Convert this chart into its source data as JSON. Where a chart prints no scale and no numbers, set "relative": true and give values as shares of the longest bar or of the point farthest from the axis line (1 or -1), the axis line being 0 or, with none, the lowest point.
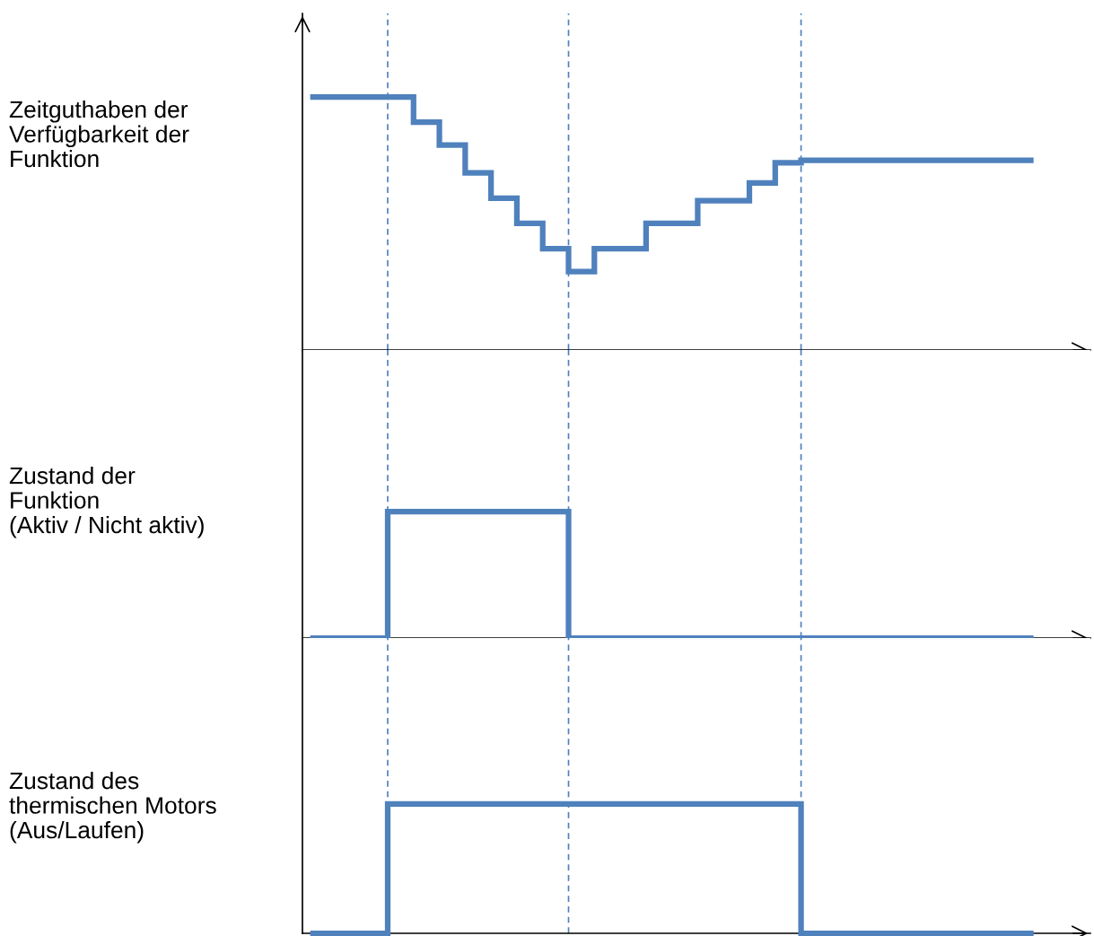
{
  "chart_data": [
    {
      "type": "step",
      "relative": true,
      "ylabel": "Zeitguthaben der\nVerfügbarkeit der\nFunktion",
      "categories": [
        null,
        null,
        null,
        null,
        null,
        null,
        null,
        null,
        null,
        null,
        null,
        null,
        null,
        null,
        null,
        null,
        null,
        null,
        null,
        null,
        null,
        null,
        null,
        null,
        null,
        null,
        null,
        null,
        null
      ],
      "series": [
        {
          "color": "#4f81bd",
          "values": [
            1.0,
            1.0,
            1.0,
            1.0,
            0.9,
            0.81,
            0.7,
            0.6,
            0.5,
            0.4,
            0.31,
            0.4,
            0.4,
            0.5,
            0.5,
            0.59,
            0.59,
            0.66,
            0.74,
            0.75,
            0.75,
            0.75,
            0.75,
            0.75,
            0.75,
            0.75,
            0.75,
            0.75,
            0.75
          ]
        }
      ],
      "grid": "x"
    },
    {
      "type": "step",
      "relative": true,
      "ylabel": "Zustand der\nFunktion\n(Aktiv / Nicht aktiv)",
      "categories": [
        null,
        null,
        null,
        null,
        null,
        null,
        null,
        null,
        null,
        null,
        null,
        null,
        null,
        null,
        null,
        null,
        null,
        null,
        null,
        null,
        null,
        null,
        null,
        null,
        null,
        null,
        null,
        null,
        null
      ],
      "series": [
        {
          "color": "#4f81bd",
          "values": [
            0,
            0,
            0,
            1,
            1,
            1,
            1,
            1,
            1,
            1,
            0,
            0,
            0,
            0,
            0,
            0,
            0,
            0,
            0,
            0,
            0,
            0,
            0,
            0,
            0,
            0,
            0,
            0,
            0
          ]
        }
      ],
      "grid": "x"
    },
    {
      "type": "step",
      "relative": true,
      "ylabel": "Zustand des\nthermischen Motors\n(Aus/Laufen)",
      "categories": [
        null,
        null,
        null,
        null,
        null,
        null,
        null,
        null,
        null,
        null,
        null,
        null,
        null,
        null,
        null,
        null,
        null,
        null,
        null,
        null,
        null,
        null,
        null,
        null,
        null,
        null,
        null,
        null,
        null
      ],
      "series": [
        {
          "color": "#4f81bd",
          "values": [
            0,
            0,
            0,
            1,
            1,
            1,
            1,
            1,
            1,
            1,
            1,
            1,
            1,
            1,
            1,
            1,
            1,
            1,
            1,
            0,
            0,
            0,
            0,
            0,
            0,
            0,
            0,
            0,
            0
          ]
        }
      ],
      "grid": "x"
    }
  ]
}
